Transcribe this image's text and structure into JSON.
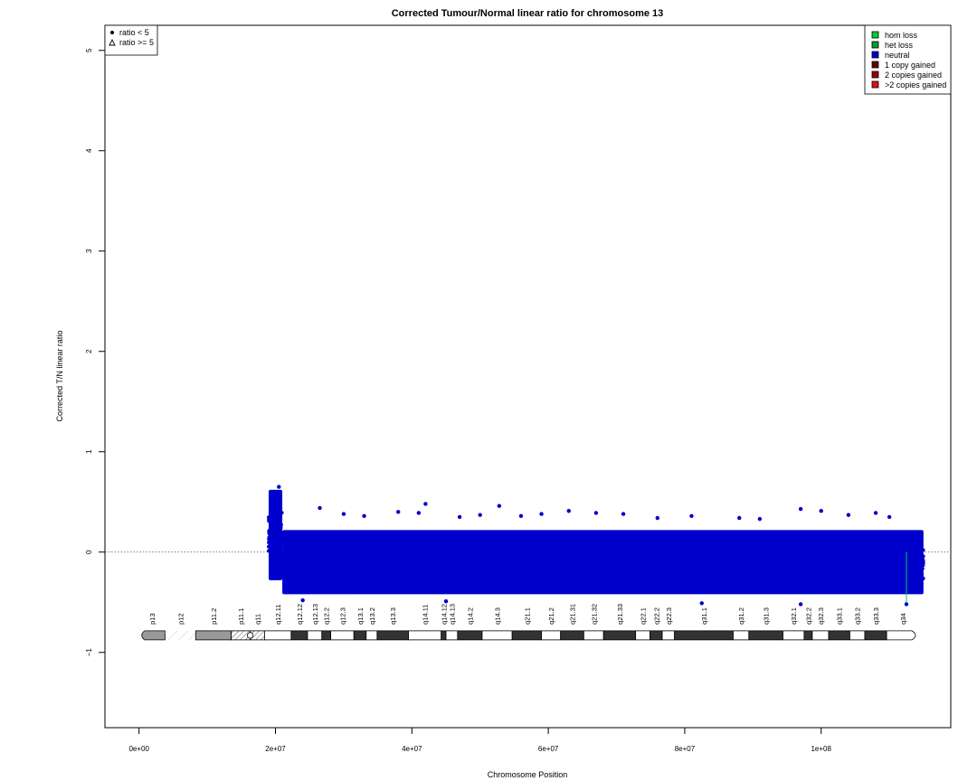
{
  "chart_data": {
    "type": "scatter",
    "title": "Corrected Tumour/Normal linear ratio for chromosome  13",
    "xlabel": "Chromosome Position",
    "ylabel": "Corrected T/N linear ratio",
    "xlim": [
      -5000000,
      119000000
    ],
    "ylim": [
      -1.75,
      5.25
    ],
    "x_ticks": [
      0,
      20000000,
      40000000,
      60000000,
      80000000,
      100000000
    ],
    "x_tick_labels": [
      "0e+00",
      "2e+07",
      "4e+07",
      "6e+07",
      "8e+07",
      "1e+08"
    ],
    "y_ticks": [
      -1,
      0,
      1,
      2,
      3,
      4,
      5
    ],
    "y_tick_labels": [
      "−1",
      "0",
      "1",
      "2",
      "3",
      "4",
      "5"
    ],
    "reference_line_y": 0,
    "grid": false,
    "series": [
      {
        "name": "neutral",
        "color": "#0000cc",
        "x_start": 19000000,
        "x_end": 115000000,
        "y_median": -0.11,
        "y_band_low": -0.42,
        "y_band_high": 0.22,
        "segments": [
          {
            "x_start": 19000000,
            "x_end": 21000000,
            "y_low": -0.28,
            "y_high": 0.62
          },
          {
            "x_start": 21000000,
            "x_end": 115000000,
            "y_low": -0.42,
            "y_high": 0.22
          }
        ],
        "outliers": [
          {
            "x": 20500000,
            "y": 0.65
          },
          {
            "x": 26500000,
            "y": 0.44
          },
          {
            "x": 30000000,
            "y": 0.38
          },
          {
            "x": 33000000,
            "y": 0.36
          },
          {
            "x": 38000000,
            "y": 0.4
          },
          {
            "x": 41000000,
            "y": 0.39
          },
          {
            "x": 42000000,
            "y": 0.48
          },
          {
            "x": 47000000,
            "y": 0.35
          },
          {
            "x": 50000000,
            "y": 0.37
          },
          {
            "x": 52800000,
            "y": 0.46
          },
          {
            "x": 56000000,
            "y": 0.36
          },
          {
            "x": 59000000,
            "y": 0.38
          },
          {
            "x": 63000000,
            "y": 0.41
          },
          {
            "x": 67000000,
            "y": 0.39
          },
          {
            "x": 71000000,
            "y": 0.38
          },
          {
            "x": 76000000,
            "y": 0.34
          },
          {
            "x": 81000000,
            "y": 0.36
          },
          {
            "x": 88000000,
            "y": 0.34
          },
          {
            "x": 91000000,
            "y": 0.33
          },
          {
            "x": 97000000,
            "y": 0.43
          },
          {
            "x": 100000000,
            "y": 0.41
          },
          {
            "x": 104000000,
            "y": 0.37
          },
          {
            "x": 108000000,
            "y": 0.39
          },
          {
            "x": 110000000,
            "y": 0.35
          },
          {
            "x": 24000000,
            "y": -0.48
          },
          {
            "x": 45000000,
            "y": -0.49
          },
          {
            "x": 82500000,
            "y": -0.51
          },
          {
            "x": 97000000,
            "y": -0.52
          },
          {
            "x": 112500000,
            "y": -0.52
          }
        ]
      }
    ],
    "hom_loss_marker": {
      "x": 112500000,
      "y_low": -0.5,
      "y_high": 0.0,
      "color": "#00cc44"
    },
    "shape_legend": {
      "position": "top-left",
      "items": [
        {
          "symbol": "circle",
          "label": "ratio < 5"
        },
        {
          "symbol": "triangle",
          "label": "ratio >= 5"
        }
      ]
    },
    "color_legend": {
      "position": "top-right",
      "items": [
        {
          "label": "hom loss",
          "color": "#00cc33"
        },
        {
          "label": "het loss",
          "color": "#009933"
        },
        {
          "label": "neutral",
          "color": "#0000cc"
        },
        {
          "label": "1 copy gained",
          "color": "#660000"
        },
        {
          "label": "2 copies gained",
          "color": "#990000"
        },
        {
          "label": ">2 copies gained",
          "color": "#dd1111"
        }
      ]
    },
    "ideogram": {
      "y": -0.83,
      "bands": [
        {
          "name": "p13",
          "start": 0,
          "end": 3800000,
          "stain": "gvar"
        },
        {
          "name": "p12",
          "start": 3800000,
          "end": 8300000,
          "stain": "stalk"
        },
        {
          "name": "p11.2",
          "start": 8300000,
          "end": 13500000,
          "stain": "gvar"
        },
        {
          "name": "p11.1",
          "start": 13500000,
          "end": 16300000,
          "stain": "acen"
        },
        {
          "name": "q11",
          "start": 16300000,
          "end": 18400000,
          "stain": "acen"
        },
        {
          "name": "q12.11",
          "start": 18400000,
          "end": 22300000,
          "stain": "gneg"
        },
        {
          "name": "q12.12",
          "start": 22300000,
          "end": 24700000,
          "stain": "gpos"
        },
        {
          "name": "q12.13",
          "start": 24700000,
          "end": 26800000,
          "stain": "gneg"
        },
        {
          "name": "q12.2",
          "start": 26800000,
          "end": 28100000,
          "stain": "gpos"
        },
        {
          "name": "q12.3",
          "start": 28100000,
          "end": 31500000,
          "stain": "gneg"
        },
        {
          "name": "q13.1",
          "start": 31500000,
          "end": 33300000,
          "stain": "gpos"
        },
        {
          "name": "q13.2",
          "start": 33300000,
          "end": 34900000,
          "stain": "gneg"
        },
        {
          "name": "q13.3",
          "start": 34900000,
          "end": 39500000,
          "stain": "gpos"
        },
        {
          "name": "q14.11",
          "start": 39500000,
          "end": 44300000,
          "stain": "gneg"
        },
        {
          "name": "q14.12",
          "start": 44300000,
          "end": 45000000,
          "stain": "gpos"
        },
        {
          "name": "q14.13",
          "start": 45000000,
          "end": 46700000,
          "stain": "gneg"
        },
        {
          "name": "q14.2",
          "start": 46700000,
          "end": 50300000,
          "stain": "gpos"
        },
        {
          "name": "q14.3",
          "start": 50300000,
          "end": 54700000,
          "stain": "gneg"
        },
        {
          "name": "q21.1",
          "start": 54700000,
          "end": 59000000,
          "stain": "gpos"
        },
        {
          "name": "q21.2",
          "start": 59000000,
          "end": 61800000,
          "stain": "gneg"
        },
        {
          "name": "q21.31",
          "start": 61800000,
          "end": 65200000,
          "stain": "gpos"
        },
        {
          "name": "q21.32",
          "start": 65200000,
          "end": 68100000,
          "stain": "gneg"
        },
        {
          "name": "q21.33",
          "start": 68100000,
          "end": 72800000,
          "stain": "gpos"
        },
        {
          "name": "q22.1",
          "start": 72800000,
          "end": 74900000,
          "stain": "gneg"
        },
        {
          "name": "q22.2",
          "start": 74900000,
          "end": 76700000,
          "stain": "gpos"
        },
        {
          "name": "q22.3",
          "start": 76700000,
          "end": 78500000,
          "stain": "gneg"
        },
        {
          "name": "q31.1",
          "start": 78500000,
          "end": 87100000,
          "stain": "gpos"
        },
        {
          "name": "q31.2",
          "start": 87100000,
          "end": 89400000,
          "stain": "gneg"
        },
        {
          "name": "q31.3",
          "start": 89400000,
          "end": 94400000,
          "stain": "gpos"
        },
        {
          "name": "q32.1",
          "start": 94400000,
          "end": 97500000,
          "stain": "gneg"
        },
        {
          "name": "q32.2",
          "start": 97500000,
          "end": 98700000,
          "stain": "gpos"
        },
        {
          "name": "q32.3",
          "start": 98700000,
          "end": 101100000,
          "stain": "gneg"
        },
        {
          "name": "q33.1",
          "start": 101100000,
          "end": 104200000,
          "stain": "gpos"
        },
        {
          "name": "q33.2",
          "start": 104200000,
          "end": 106400000,
          "stain": "gneg"
        },
        {
          "name": "q33.3",
          "start": 106400000,
          "end": 109600000,
          "stain": "gpos"
        },
        {
          "name": "q34",
          "start": 109600000,
          "end": 114364328,
          "stain": "gneg"
        }
      ]
    }
  }
}
